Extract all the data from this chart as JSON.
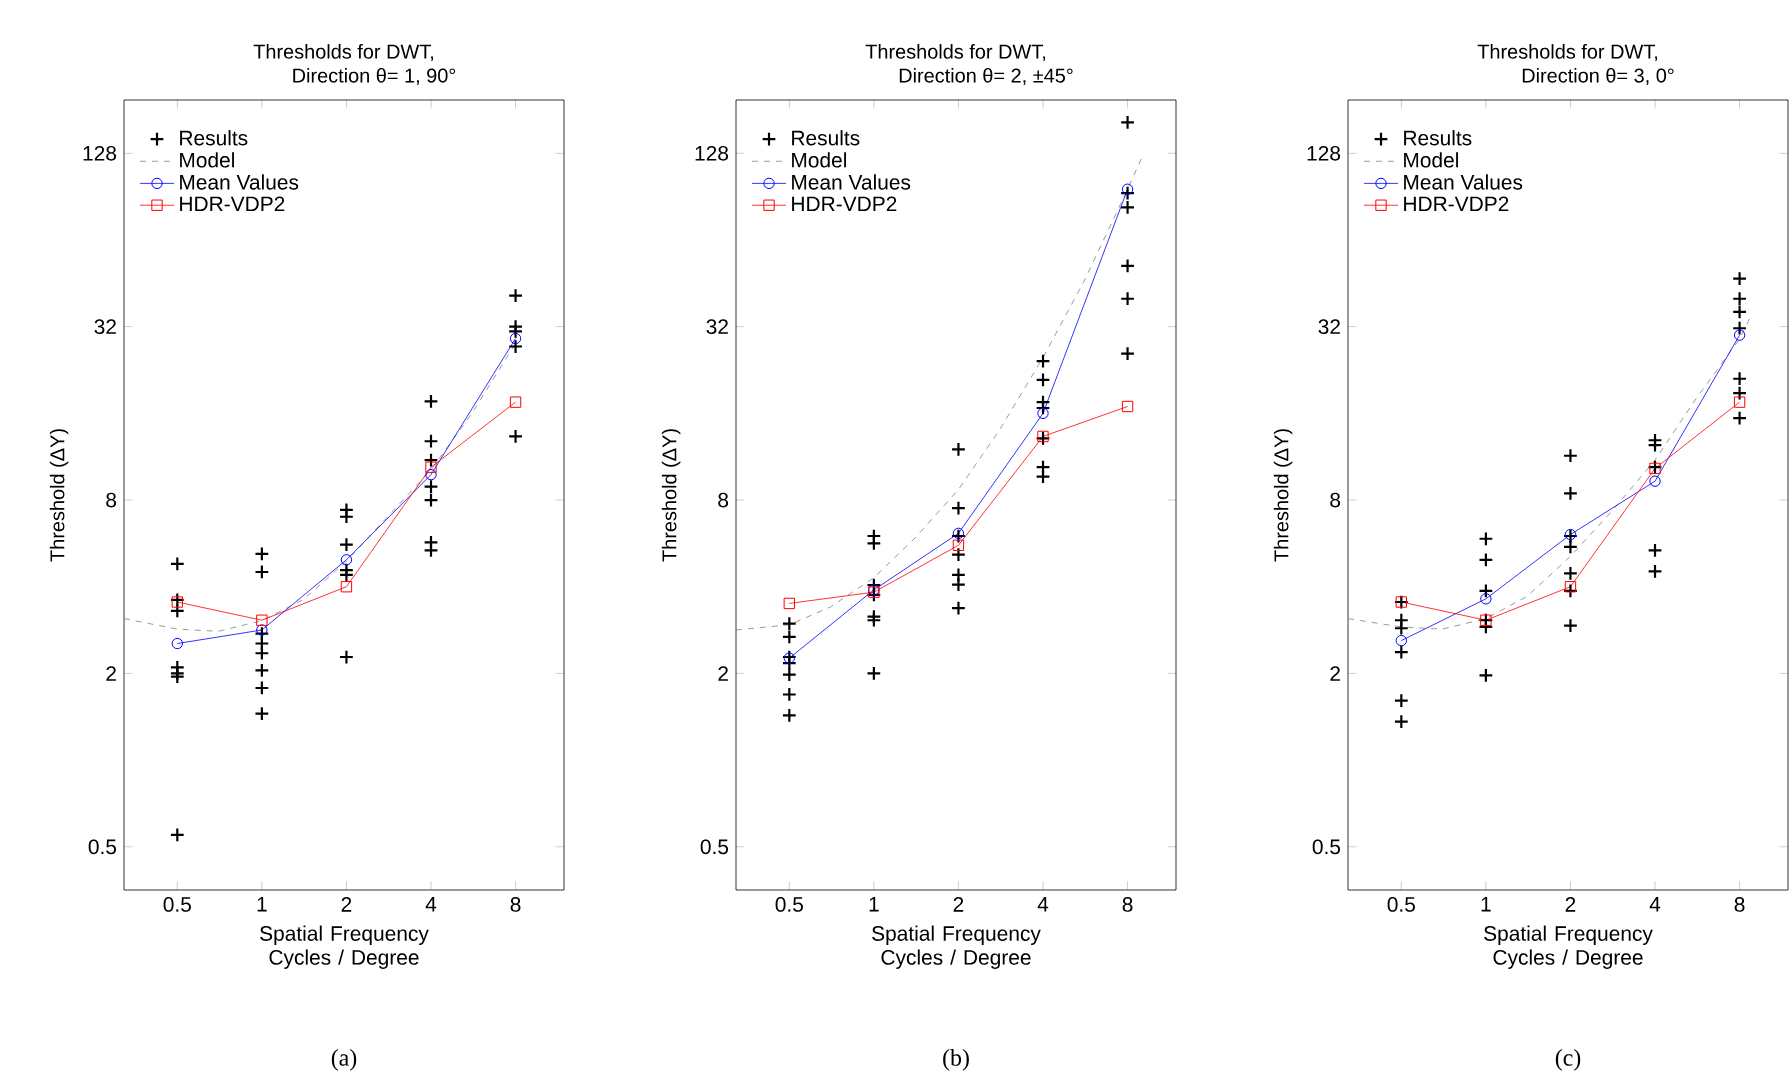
{
  "chart_data": [
    {
      "type": "line",
      "title": "Thresholds for DWT,",
      "subtitle": "Direction θ= 1, 90°",
      "xlabel": "Spatial Frequency Cycles / Degree",
      "ylabel": "Threshold (ΔY)",
      "log": "xy",
      "xlim": [
        0.323,
        11.9
      ],
      "ylim": [
        0.354,
        196
      ],
      "xticks": [
        0.5,
        1,
        2,
        4,
        8
      ],
      "yticks": [
        0.5,
        2,
        8,
        32,
        128
      ],
      "legend": "top left",
      "annotations": [
        "(a)"
      ],
      "series": [
        {
          "name": "Results",
          "type": "scatter",
          "marker": "cross",
          "color": "#000000",
          "x": [
            0.5,
            0.5,
            0.5,
            0.5,
            0.5,
            0.5,
            0.5,
            1,
            1,
            1,
            1,
            1,
            1,
            1,
            1,
            2,
            2,
            2,
            2,
            2,
            2,
            4,
            4,
            4,
            4,
            4,
            4,
            4,
            8,
            8,
            8,
            8,
            8
          ],
          "values": [
            4.8,
            3.6,
            3.3,
            2.1,
            2.0,
            1.95,
            0.55,
            5.2,
            4.5,
            2.75,
            2.54,
            2.35,
            2.05,
            1.78,
            1.45,
            7.4,
            7.0,
            5.6,
            4.57,
            4.4,
            2.28,
            17.6,
            12.8,
            11.0,
            8.9,
            8.0,
            5.7,
            5.35,
            41,
            32,
            30.8,
            27.3,
            13.3
          ]
        },
        {
          "name": "Model",
          "type": "line",
          "marker": "none",
          "line_style": "dashed",
          "color": "#808080",
          "x": [
            0.323,
            0.5,
            0.7,
            1,
            1.4,
            2,
            2.8,
            4,
            5.6,
            8
          ],
          "values": [
            3.1,
            2.85,
            2.8,
            3.05,
            3.6,
            4.9,
            7,
            10.2,
            16,
            28
          ]
        },
        {
          "name": "Mean Values",
          "type": "line",
          "marker": "circle",
          "line_style": "solid",
          "color": "#0000ff",
          "x": [
            0.5,
            1,
            2,
            4,
            8
          ],
          "values": [
            2.54,
            2.83,
            4.96,
            9.8,
            29.1
          ]
        },
        {
          "name": "HDR-VDP2",
          "type": "line",
          "marker": "square",
          "line_style": "solid",
          "color": "#ff0000",
          "x": [
            0.5,
            1,
            2,
            4,
            8
          ],
          "values": [
            3.54,
            3.06,
            4.0,
            10.4,
            17.5
          ]
        }
      ]
    },
    {
      "type": "line",
      "title": "Thresholds for DWT,",
      "subtitle": "Direction θ= 2, ±45°",
      "xlabel": "Spatial Frequency Cycles / Degree",
      "ylabel": "Threshold (ΔY)",
      "log": "xy",
      "xlim": [
        0.323,
        11.9
      ],
      "ylim": [
        0.354,
        196
      ],
      "xticks": [
        0.5,
        1,
        2,
        4,
        8
      ],
      "yticks": [
        0.5,
        2,
        8,
        32,
        128
      ],
      "legend": "top left",
      "annotations": [
        "(b)"
      ],
      "series": [
        {
          "name": "Results",
          "type": "scatter",
          "marker": "cross",
          "color": "#000000",
          "x": [
            0.5,
            0.5,
            0.5,
            0.5,
            0.5,
            0.5,
            0.5,
            1,
            1,
            1,
            1,
            1,
            1,
            1,
            2,
            2,
            2,
            2,
            2,
            2,
            2,
            4,
            4,
            4,
            4,
            4,
            4,
            4,
            8,
            8,
            8,
            8,
            8,
            8
          ],
          "values": [
            2.98,
            2.68,
            2.28,
            2.17,
            1.98,
            1.69,
            1.43,
            6.0,
            5.66,
            4.05,
            3.75,
            3.15,
            3.06,
            2.0,
            12.0,
            7.5,
            6.0,
            5.17,
            4.4,
            4.07,
            3.37,
            24.3,
            20.9,
            17.5,
            16.7,
            13.1,
            10.4,
            9.65,
            164,
            93,
            83,
            52,
            40,
            25.8
          ]
        },
        {
          "name": "Model",
          "type": "line",
          "marker": "none",
          "line_style": "dashed",
          "color": "#808080",
          "x": [
            0.323,
            0.5,
            0.7,
            1,
            1.4,
            2,
            2.8,
            4,
            5.6,
            8,
            9
          ],
          "values": [
            2.83,
            2.95,
            3.4,
            4.3,
            5.9,
            8.7,
            14,
            25,
            46,
            96,
            124
          ]
        },
        {
          "name": "Mean Values",
          "type": "line",
          "marker": "circle",
          "line_style": "solid",
          "color": "#0000ff",
          "x": [
            0.5,
            1,
            2,
            4,
            8
          ],
          "values": [
            2.26,
            3.9,
            6.13,
            16,
            96
          ]
        },
        {
          "name": "HDR-VDP2",
          "type": "line",
          "marker": "square",
          "line_style": "solid",
          "color": "#ff0000",
          "x": [
            0.5,
            1,
            2,
            4,
            8
          ],
          "values": [
            3.5,
            3.83,
            5.57,
            13.3,
            16.9
          ]
        }
      ]
    },
    {
      "type": "line",
      "title": "Thresholds for DWT,",
      "subtitle": "Direction θ= 3, 0°",
      "xlabel": "Spatial Frequency Cycles / Degree",
      "ylabel": "Threshold (ΔY)",
      "log": "xy",
      "xlim": [
        0.323,
        11.9
      ],
      "ylim": [
        0.354,
        196
      ],
      "xticks": [
        0.5,
        1,
        2,
        4,
        8
      ],
      "yticks": [
        0.5,
        2,
        8,
        32,
        128
      ],
      "legend": "top left",
      "annotations": [
        "(c)"
      ],
      "series": [
        {
          "name": "Results",
          "type": "scatter",
          "marker": "cross",
          "color": "#000000",
          "x": [
            0.5,
            0.5,
            0.5,
            0.5,
            0.5,
            0.5,
            1,
            1,
            1,
            1,
            1,
            1,
            2,
            2,
            2,
            2,
            2,
            2,
            2,
            4,
            4,
            4,
            4,
            4,
            8,
            8,
            8,
            8,
            8,
            8,
            8
          ],
          "values": [
            3.54,
            3.06,
            2.87,
            2.37,
            1.61,
            1.36,
            5.87,
            4.96,
            3.87,
            3.06,
            2.9,
            1.97,
            11.4,
            8.44,
            6.0,
            5.5,
            4.45,
            3.87,
            2.93,
            12.9,
            12.4,
            10.4,
            5.35,
            4.52,
            47,
            40,
            36,
            31.6,
            21.1,
            18.8,
            15.4
          ]
        },
        {
          "name": "Model",
          "type": "line",
          "marker": "none",
          "line_style": "dashed",
          "color": "#808080",
          "x": [
            0.323,
            0.5,
            0.7,
            1,
            1.4,
            2,
            2.8,
            4,
            5.6,
            8,
            8.8
          ],
          "values": [
            3.1,
            2.9,
            2.85,
            3.1,
            3.7,
            5.1,
            7.3,
            11,
            18,
            29,
            35
          ]
        },
        {
          "name": "Mean Values",
          "type": "line",
          "marker": "circle",
          "line_style": "solid",
          "color": "#0000ff",
          "x": [
            0.5,
            1,
            2,
            4,
            8
          ],
          "values": [
            2.6,
            3.63,
            6.07,
            9.3,
            29.9
          ]
        },
        {
          "name": "HDR-VDP2",
          "type": "line",
          "marker": "square",
          "line_style": "solid",
          "color": "#ff0000",
          "x": [
            0.5,
            1,
            2,
            4,
            8
          ],
          "values": [
            3.54,
            3.06,
            4.0,
            10.3,
            17.5
          ]
        }
      ]
    }
  ]
}
